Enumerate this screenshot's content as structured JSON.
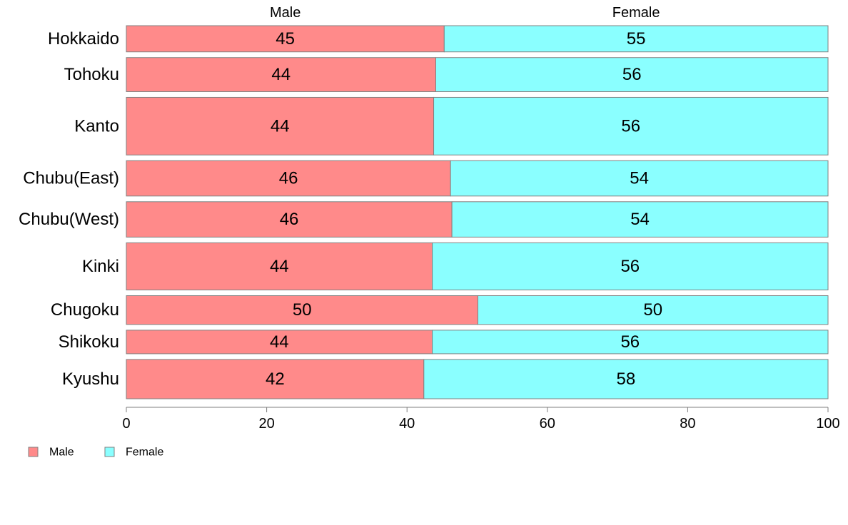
{
  "chart_data": {
    "type": "bar",
    "orientation": "horizontal",
    "stacked": true,
    "categories": [
      "Hokkaido",
      "Tohoku",
      "Kanto",
      "Chubu(East)",
      "Chubu(West)",
      "Kinki",
      "Chugoku",
      "Shikoku",
      "Kyushu"
    ],
    "weights": [
      1.0,
      1.3,
      2.2,
      1.35,
      1.35,
      1.8,
      1.1,
      0.9,
      1.5
    ],
    "series": [
      {
        "name": "Male",
        "values": [
          45.3,
          44.1,
          43.8,
          46.2,
          46.4,
          43.6,
          50.1,
          43.6,
          42.4
        ],
        "labels": [
          "45",
          "44",
          "44",
          "46",
          "46",
          "44",
          "50",
          "44",
          "42"
        ],
        "color": "#FF8A8A"
      },
      {
        "name": "Female",
        "values": [
          54.7,
          55.9,
          56.2,
          53.8,
          53.6,
          56.4,
          49.9,
          56.4,
          57.6
        ],
        "labels": [
          "55",
          "56",
          "56",
          "54",
          "54",
          "56",
          "50",
          "56",
          "58"
        ],
        "color": "#8AFFFF"
      }
    ],
    "column_headers": [
      "Male",
      "Female"
    ],
    "xlim": [
      0,
      100
    ],
    "xticks": [
      "0",
      "20",
      "40",
      "60",
      "80",
      "100"
    ],
    "xlabel": "",
    "ylabel": "",
    "title": "",
    "grid": false,
    "legend": {
      "position": "bottom-left",
      "items": [
        "Male",
        "Female"
      ]
    }
  }
}
